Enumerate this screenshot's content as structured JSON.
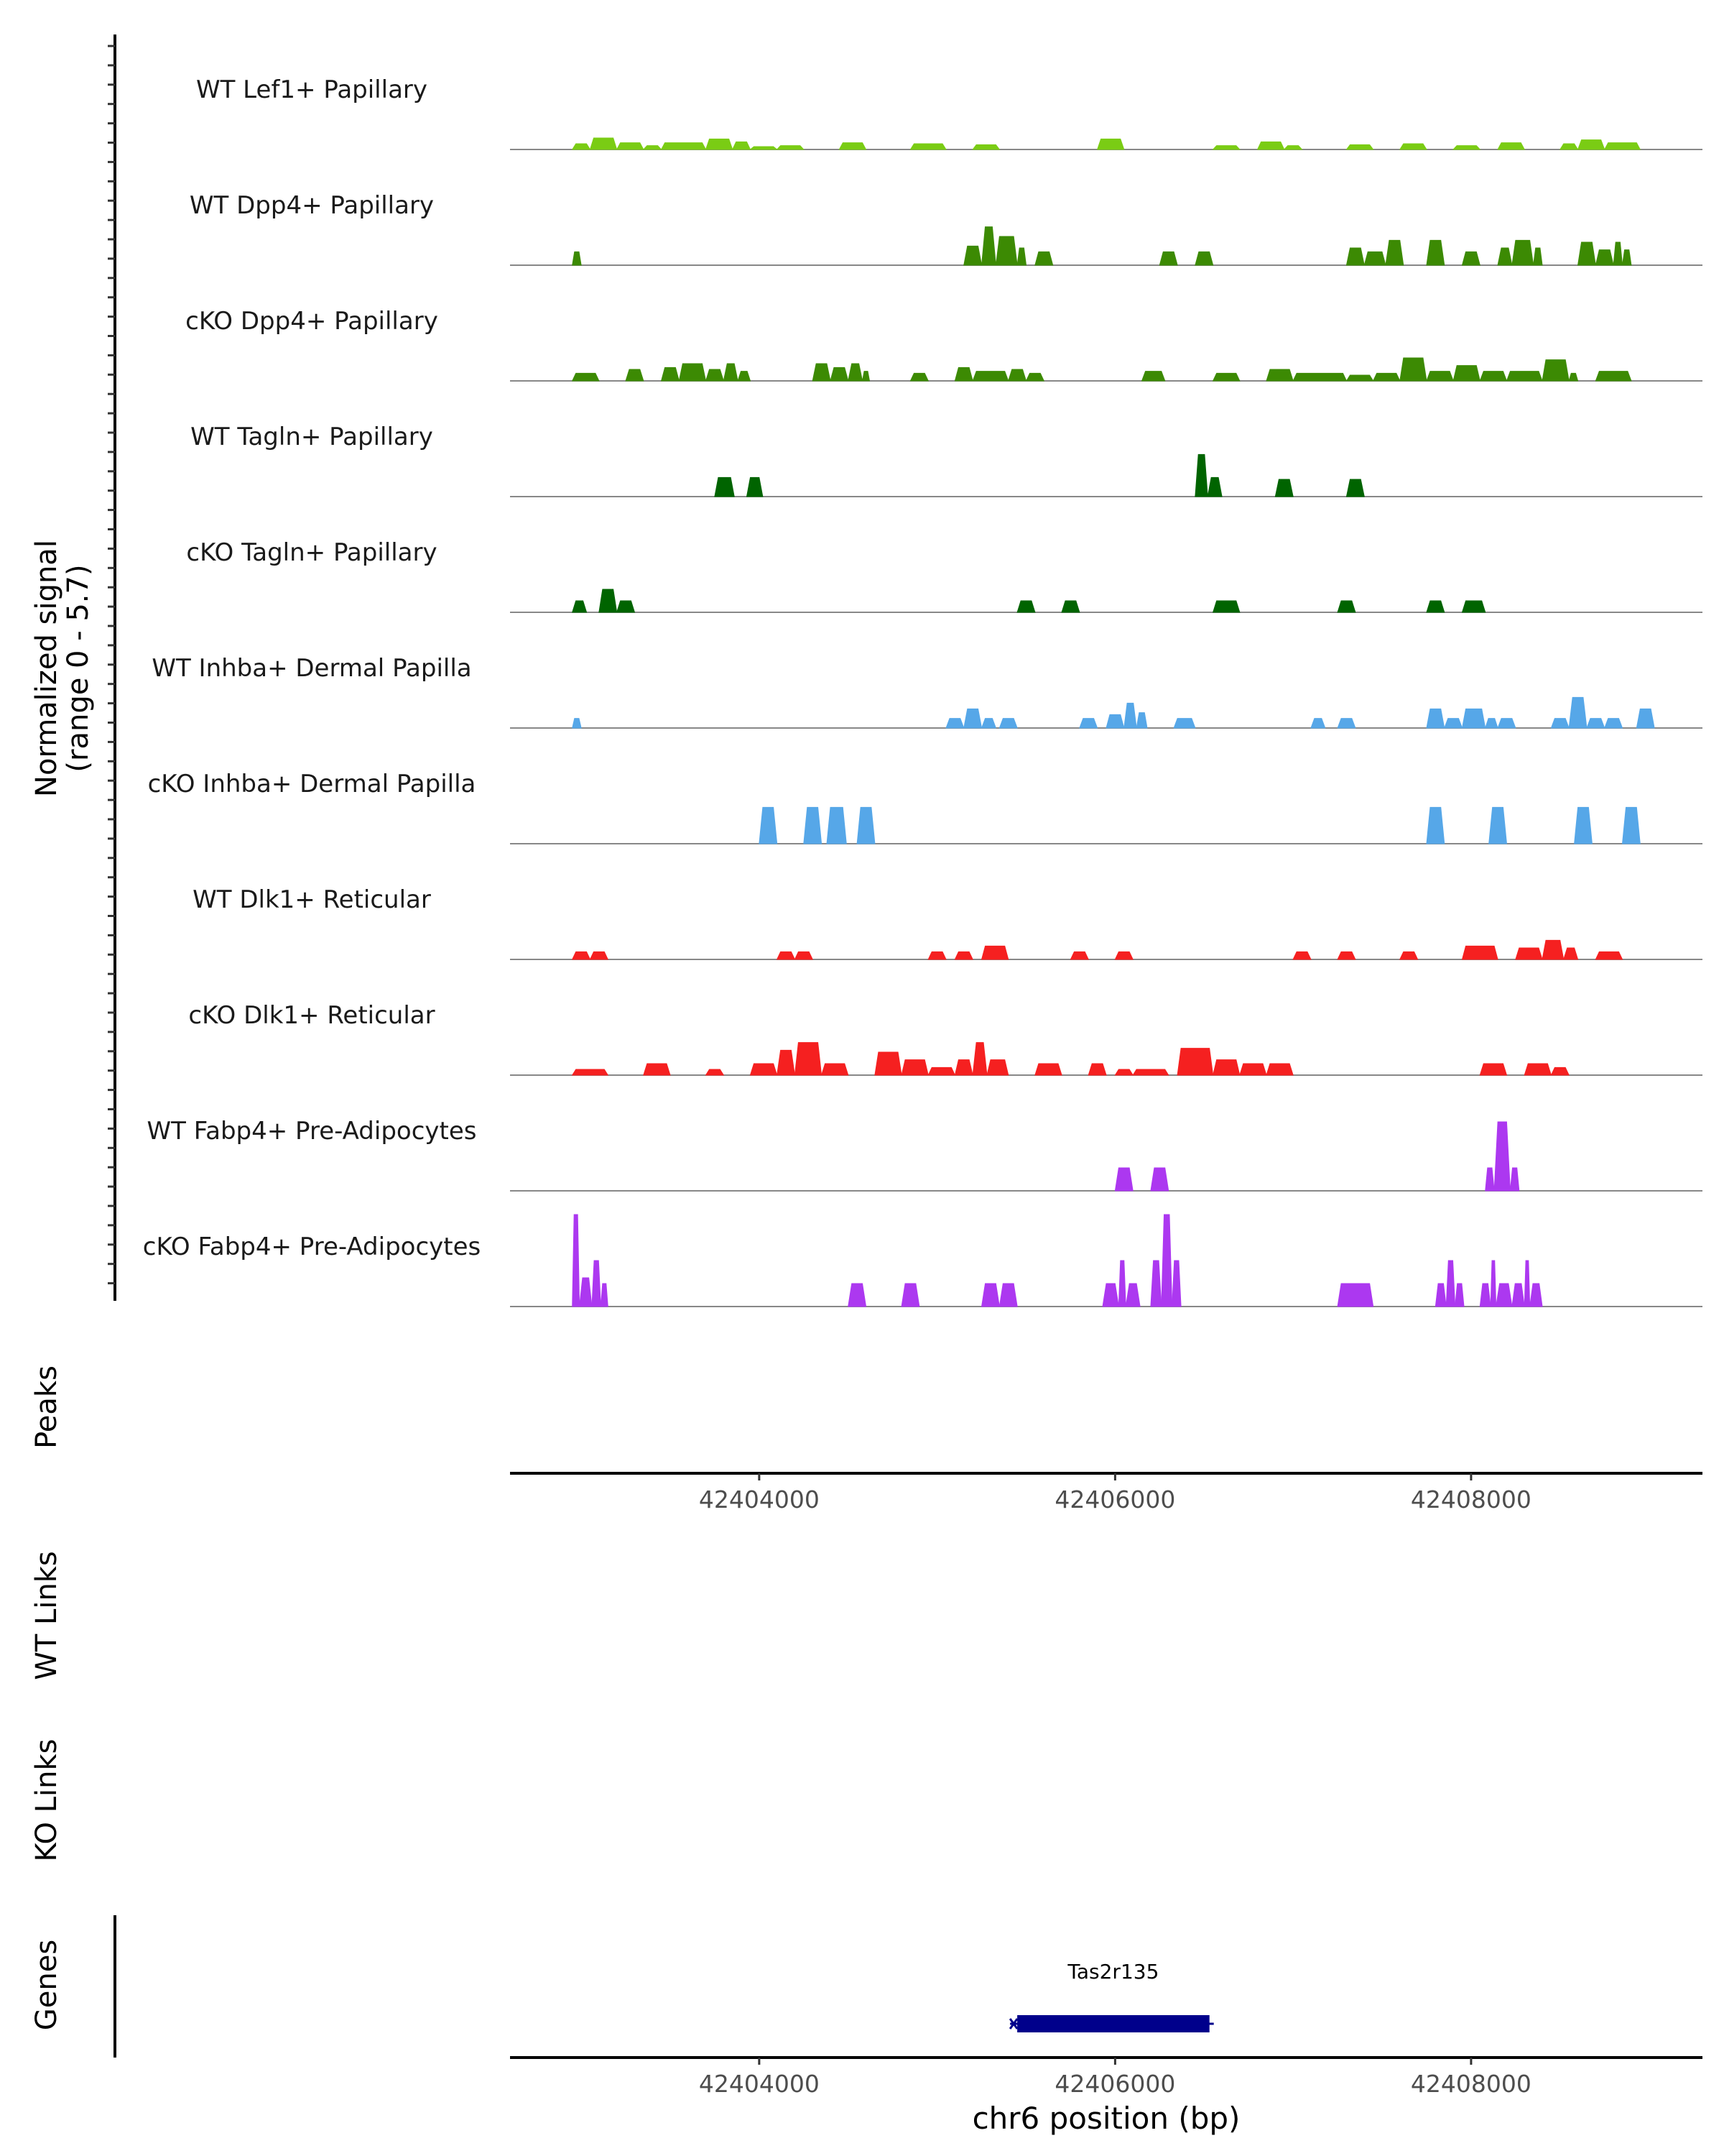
{
  "chart_data": {
    "type": "area",
    "title": "",
    "region": {
      "chromosome": "chr6",
      "start": 42402600,
      "end": 42409300
    },
    "ylabel": "Normalized signal",
    "ylabel_range": "(range 0 - 5.7)",
    "ylim": [
      0,
      5.7
    ],
    "xlabel": "chr6 position (bp)",
    "x_ticks": [
      42404000,
      42406000,
      42408000
    ],
    "x_tick_labels": [
      "42404000",
      "42406000",
      "42408000"
    ],
    "peaks_label": "Peaks",
    "wt_links_label": "WT Links",
    "ko_links_label": "KO Links",
    "genes_label": "Genes",
    "genes": [
      {
        "name": "Tas2r135",
        "start": 42405450,
        "end": 42406530,
        "strand": "-",
        "color": "#00008B"
      }
    ],
    "tracks": [
      {
        "name": "WT Lef1+ Papillary",
        "color": "#7ACC14",
        "segments": [
          [
            42402950,
            42403050,
            0.3
          ],
          [
            42403050,
            42403200,
            0.6
          ],
          [
            42403200,
            42403350,
            0.35
          ],
          [
            42403350,
            42403450,
            0.2
          ],
          [
            42403450,
            42403700,
            0.35
          ],
          [
            42403700,
            42403850,
            0.55
          ],
          [
            42403850,
            42403950,
            0.4
          ],
          [
            42403950,
            42404100,
            0.15
          ],
          [
            42404100,
            42404250,
            0.2
          ],
          [
            42404450,
            42404600,
            0.35
          ],
          [
            42404850,
            42405050,
            0.3
          ],
          [
            42405200,
            42405350,
            0.25
          ],
          [
            42405900,
            42406050,
            0.55
          ],
          [
            42406550,
            42406700,
            0.2
          ],
          [
            42406800,
            42406950,
            0.4
          ],
          [
            42406950,
            42407050,
            0.2
          ],
          [
            42407300,
            42407450,
            0.25
          ],
          [
            42407600,
            42407750,
            0.3
          ],
          [
            42407900,
            42408050,
            0.2
          ],
          [
            42408150,
            42408300,
            0.35
          ],
          [
            42408500,
            42408600,
            0.3
          ],
          [
            42408600,
            42408750,
            0.5
          ],
          [
            42408750,
            42408950,
            0.35
          ]
        ]
      },
      {
        "name": "WT Dpp4+ Papillary",
        "color": "#3C8A03",
        "segments": [
          [
            42402950,
            42403000,
            0.7
          ],
          [
            42405150,
            42405250,
            1.0
          ],
          [
            42405250,
            42405330,
            2.0
          ],
          [
            42405330,
            42405450,
            1.5
          ],
          [
            42405450,
            42405500,
            0.9
          ],
          [
            42405550,
            42405650,
            0.7
          ],
          [
            42406250,
            42406350,
            0.7
          ],
          [
            42406450,
            42406550,
            0.7
          ],
          [
            42407300,
            42407400,
            0.9
          ],
          [
            42407400,
            42407520,
            0.7
          ],
          [
            42407520,
            42407620,
            1.3
          ],
          [
            42407750,
            42407850,
            1.3
          ],
          [
            42407950,
            42408050,
            0.7
          ],
          [
            42408150,
            42408230,
            0.9
          ],
          [
            42408230,
            42408350,
            1.3
          ],
          [
            42408350,
            42408400,
            0.9
          ],
          [
            42408600,
            42408700,
            1.2
          ],
          [
            42408700,
            42408800,
            0.8
          ],
          [
            42408800,
            42408850,
            1.2
          ],
          [
            42408850,
            42408900,
            0.8
          ]
        ]
      },
      {
        "name": "cKO Dpp4+ Papillary",
        "color": "#3C8A03",
        "segments": [
          [
            42402950,
            42403100,
            0.4
          ],
          [
            42403250,
            42403350,
            0.6
          ],
          [
            42403450,
            42403550,
            0.7
          ],
          [
            42403550,
            42403700,
            0.9
          ],
          [
            42403700,
            42403800,
            0.6
          ],
          [
            42403800,
            42403880,
            0.9
          ],
          [
            42403880,
            42403950,
            0.5
          ],
          [
            42404300,
            42404400,
            0.9
          ],
          [
            42404400,
            42404500,
            0.7
          ],
          [
            42404500,
            42404580,
            0.9
          ],
          [
            42404580,
            42404620,
            0.5
          ],
          [
            42404850,
            42404950,
            0.4
          ],
          [
            42405100,
            42405200,
            0.7
          ],
          [
            42405200,
            42405400,
            0.5
          ],
          [
            42405400,
            42405500,
            0.6
          ],
          [
            42405500,
            42405600,
            0.4
          ],
          [
            42406150,
            42406280,
            0.5
          ],
          [
            42406550,
            42406700,
            0.4
          ],
          [
            42406850,
            42407000,
            0.6
          ],
          [
            42407000,
            42407300,
            0.4
          ],
          [
            42407300,
            42407450,
            0.3
          ],
          [
            42407450,
            42407600,
            0.4
          ],
          [
            42407600,
            42407750,
            1.2
          ],
          [
            42407750,
            42407900,
            0.5
          ],
          [
            42407900,
            42408050,
            0.8
          ],
          [
            42408050,
            42408200,
            0.5
          ],
          [
            42408200,
            42408400,
            0.5
          ],
          [
            42408400,
            42408550,
            1.1
          ],
          [
            42408550,
            42408600,
            0.4
          ],
          [
            42408700,
            42408900,
            0.5
          ]
        ]
      },
      {
        "name": "WT Tagln+ Papillary",
        "color": "#006400",
        "segments": [
          [
            42403750,
            42403860,
            1.0
          ],
          [
            42403930,
            42404020,
            1.0
          ],
          [
            42406450,
            42406520,
            2.2
          ],
          [
            42406520,
            42406600,
            1.0
          ],
          [
            42406900,
            42407000,
            0.9
          ],
          [
            42407300,
            42407400,
            0.9
          ]
        ]
      },
      {
        "name": "cKO Tagln+ Papillary",
        "color": "#006400",
        "segments": [
          [
            42402950,
            42403030,
            0.6
          ],
          [
            42403100,
            42403200,
            1.2
          ],
          [
            42403200,
            42403300,
            0.6
          ],
          [
            42405450,
            42405550,
            0.6
          ],
          [
            42405700,
            42405800,
            0.6
          ],
          [
            42406550,
            42406700,
            0.6
          ],
          [
            42407250,
            42407350,
            0.6
          ],
          [
            42407750,
            42407850,
            0.6
          ],
          [
            42407950,
            42408080,
            0.6
          ]
        ]
      },
      {
        "name": "WT Inhba+ Dermal Papilla",
        "color": "#56A7E8",
        "segments": [
          [
            42402950,
            42403000,
            0.5
          ],
          [
            42405050,
            42405150,
            0.5
          ],
          [
            42405150,
            42405250,
            1.0
          ],
          [
            42405250,
            42405330,
            0.5
          ],
          [
            42405350,
            42405450,
            0.5
          ],
          [
            42405800,
            42405900,
            0.5
          ],
          [
            42405950,
            42406050,
            0.7
          ],
          [
            42406050,
            42406120,
            1.3
          ],
          [
            42406120,
            42406180,
            0.8
          ],
          [
            42406330,
            42406450,
            0.5
          ],
          [
            42407100,
            42407180,
            0.5
          ],
          [
            42407250,
            42407350,
            0.5
          ],
          [
            42407750,
            42407850,
            1.0
          ],
          [
            42407850,
            42407950,
            0.5
          ],
          [
            42407950,
            42408080,
            1.0
          ],
          [
            42408080,
            42408150,
            0.5
          ],
          [
            42408150,
            42408250,
            0.5
          ],
          [
            42408450,
            42408550,
            0.5
          ],
          [
            42408550,
            42408650,
            1.6
          ],
          [
            42408650,
            42408750,
            0.5
          ],
          [
            42408750,
            42408850,
            0.5
          ],
          [
            42408930,
            42409030,
            1.0
          ]
        ]
      },
      {
        "name": "cKO Inhba+ Dermal Papilla",
        "color": "#56A7E8",
        "segments": [
          [
            42404000,
            42404100,
            1.9
          ],
          [
            42404250,
            42404350,
            1.9
          ],
          [
            42404380,
            42404490,
            1.9
          ],
          [
            42404550,
            42404650,
            1.9
          ],
          [
            42407750,
            42407850,
            1.9
          ],
          [
            42408100,
            42408200,
            1.9
          ],
          [
            42408580,
            42408680,
            1.9
          ],
          [
            42408850,
            42408950,
            1.9
          ]
        ]
      },
      {
        "name": "WT Dlk1+ Reticular",
        "color": "#F52020",
        "segments": [
          [
            42402950,
            42403050,
            0.4
          ],
          [
            42403050,
            42403150,
            0.4
          ],
          [
            42404100,
            42404200,
            0.4
          ],
          [
            42404200,
            42404300,
            0.4
          ],
          [
            42404950,
            42405050,
            0.4
          ],
          [
            42405100,
            42405200,
            0.4
          ],
          [
            42405250,
            42405400,
            0.7
          ],
          [
            42405750,
            42405850,
            0.4
          ],
          [
            42406000,
            42406100,
            0.4
          ],
          [
            42407000,
            42407100,
            0.4
          ],
          [
            42407250,
            42407350,
            0.4
          ],
          [
            42407600,
            42407700,
            0.4
          ],
          [
            42407950,
            42408150,
            0.7
          ],
          [
            42408250,
            42408400,
            0.6
          ],
          [
            42408400,
            42408520,
            1.0
          ],
          [
            42408520,
            42408600,
            0.6
          ],
          [
            42408700,
            42408850,
            0.4
          ]
        ]
      },
      {
        "name": "cKO Dlk1+ Reticular",
        "color": "#F52020",
        "segments": [
          [
            42402950,
            42403150,
            0.3
          ],
          [
            42403350,
            42403500,
            0.6
          ],
          [
            42403700,
            42403800,
            0.3
          ],
          [
            42403950,
            42404100,
            0.6
          ],
          [
            42404100,
            42404200,
            1.3
          ],
          [
            42404200,
            42404350,
            1.7
          ],
          [
            42404350,
            42404500,
            0.6
          ],
          [
            42404650,
            42404800,
            1.2
          ],
          [
            42404800,
            42404950,
            0.8
          ],
          [
            42404950,
            42405100,
            0.4
          ],
          [
            42405100,
            42405200,
            0.8
          ],
          [
            42405200,
            42405280,
            1.7
          ],
          [
            42405280,
            42405400,
            0.8
          ],
          [
            42405550,
            42405700,
            0.6
          ],
          [
            42405850,
            42405950,
            0.6
          ],
          [
            42406000,
            42406100,
            0.3
          ],
          [
            42406100,
            42406300,
            0.3
          ],
          [
            42406350,
            42406550,
            1.4
          ],
          [
            42406550,
            42406700,
            0.8
          ],
          [
            42406700,
            42406850,
            0.6
          ],
          [
            42406850,
            42407000,
            0.6
          ],
          [
            42408050,
            42408200,
            0.6
          ],
          [
            42408300,
            42408450,
            0.6
          ],
          [
            42408450,
            42408550,
            0.4
          ]
        ]
      },
      {
        "name": "WT Fabp4+ Pre-Adipocytes",
        "color": "#AC38F0",
        "segments": [
          [
            42406000,
            42406100,
            1.2
          ],
          [
            42406200,
            42406300,
            1.2
          ],
          [
            42408080,
            42408130,
            1.2
          ],
          [
            42408130,
            42408220,
            3.6
          ],
          [
            42408220,
            42408270,
            1.2
          ]
        ]
      },
      {
        "name": "cKO Fabp4+ Pre-Adipocytes",
        "color": "#AC38F0",
        "segments": [
          [
            42402950,
            42402990,
            4.8
          ],
          [
            42402990,
            42403060,
            1.5
          ],
          [
            42403060,
            42403110,
            2.4
          ],
          [
            42403110,
            42403150,
            1.2
          ],
          [
            42404500,
            42404600,
            1.2
          ],
          [
            42404800,
            42404900,
            1.2
          ],
          [
            42405250,
            42405350,
            1.2
          ],
          [
            42405350,
            42405450,
            1.2
          ],
          [
            42405930,
            42406020,
            1.2
          ],
          [
            42406020,
            42406060,
            2.4
          ],
          [
            42406060,
            42406140,
            1.2
          ],
          [
            42406200,
            42406260,
            2.4
          ],
          [
            42406260,
            42406320,
            4.8
          ],
          [
            42406320,
            42406370,
            2.4
          ],
          [
            42407250,
            42407450,
            1.2
          ],
          [
            42407800,
            42407860,
            1.2
          ],
          [
            42407860,
            42407910,
            2.4
          ],
          [
            42407910,
            42407960,
            1.2
          ],
          [
            42408050,
            42408110,
            1.2
          ],
          [
            42408110,
            42408140,
            2.4
          ],
          [
            42408140,
            42408230,
            1.2
          ],
          [
            42408230,
            42408300,
            1.2
          ],
          [
            42408300,
            42408330,
            2.4
          ],
          [
            42408330,
            42408400,
            1.2
          ]
        ]
      }
    ]
  }
}
